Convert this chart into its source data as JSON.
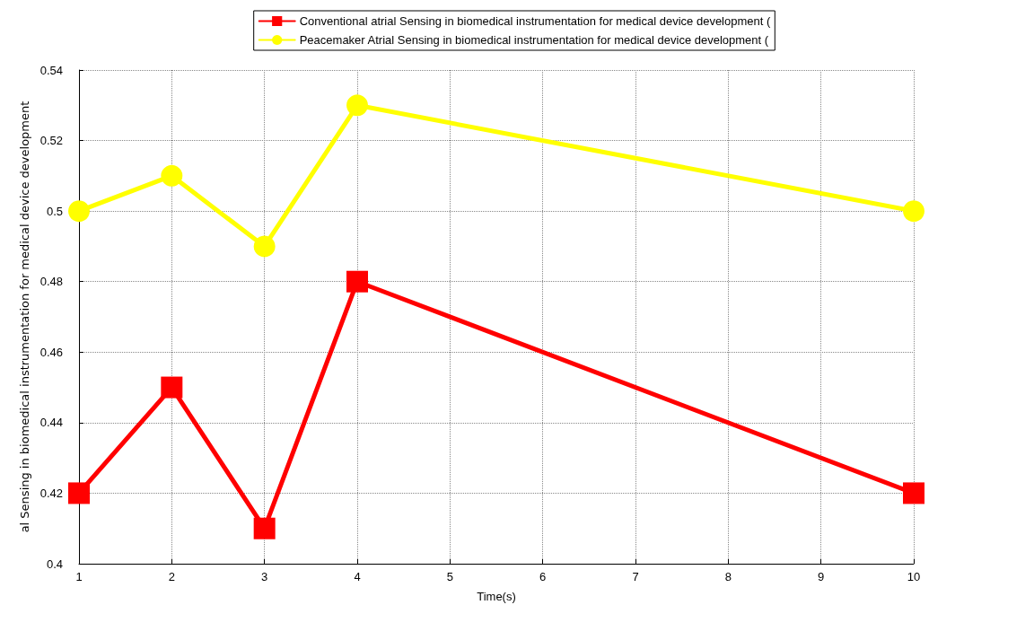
{
  "chart_data": {
    "type": "line",
    "xlabel": "Time(s)",
    "ylabel": "al Sensing in biomedical instrumentation for medical device development",
    "x": [
      1,
      2,
      3,
      4,
      10
    ],
    "series": [
      {
        "name": "Conventional atrial Sensing in biomedical instrumentation for medical device development (",
        "color": "#ff0000",
        "marker": "square",
        "values": [
          0.42,
          0.45,
          0.41,
          0.48,
          0.42
        ]
      },
      {
        "name": "Peacemaker Atrial Sensing in biomedical instrumentation for medical device development (",
        "color": "#ffff00",
        "marker": "circle",
        "values": [
          0.5,
          0.51,
          0.49,
          0.53,
          0.5
        ]
      }
    ],
    "xlim": [
      1,
      10
    ],
    "xticks": [
      1,
      2,
      3,
      4,
      5,
      6,
      7,
      8,
      9,
      10
    ],
    "ylim": [
      0.4,
      0.54
    ],
    "yticks": [
      0.4,
      0.42,
      0.44,
      0.46,
      0.48,
      0.5,
      0.52,
      0.54
    ],
    "grid": true,
    "legend": "top",
    "line_style": "solid"
  }
}
